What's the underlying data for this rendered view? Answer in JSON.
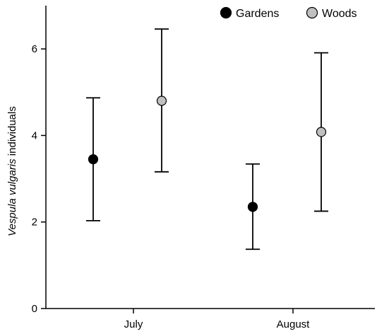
{
  "chart_data": {
    "type": "scatter",
    "categories": [
      "July",
      "August"
    ],
    "ylabel": {
      "italic": "Vespula vulgaris",
      "rest": " individuals"
    },
    "ylim": [
      0,
      7
    ],
    "yticks": [
      0,
      2,
      4,
      6
    ],
    "legend_placement": "top-right",
    "grid": false,
    "series": [
      {
        "name": "Gardens",
        "color": "#000000",
        "values": [
          3.45,
          2.35
        ],
        "lower": [
          2.03,
          1.37
        ],
        "upper": [
          4.87,
          3.34
        ]
      },
      {
        "name": "Woods",
        "color": "#c0c0c0",
        "values": [
          4.8,
          4.08
        ],
        "lower": [
          3.16,
          2.25
        ],
        "upper": [
          6.46,
          5.91
        ]
      }
    ]
  }
}
